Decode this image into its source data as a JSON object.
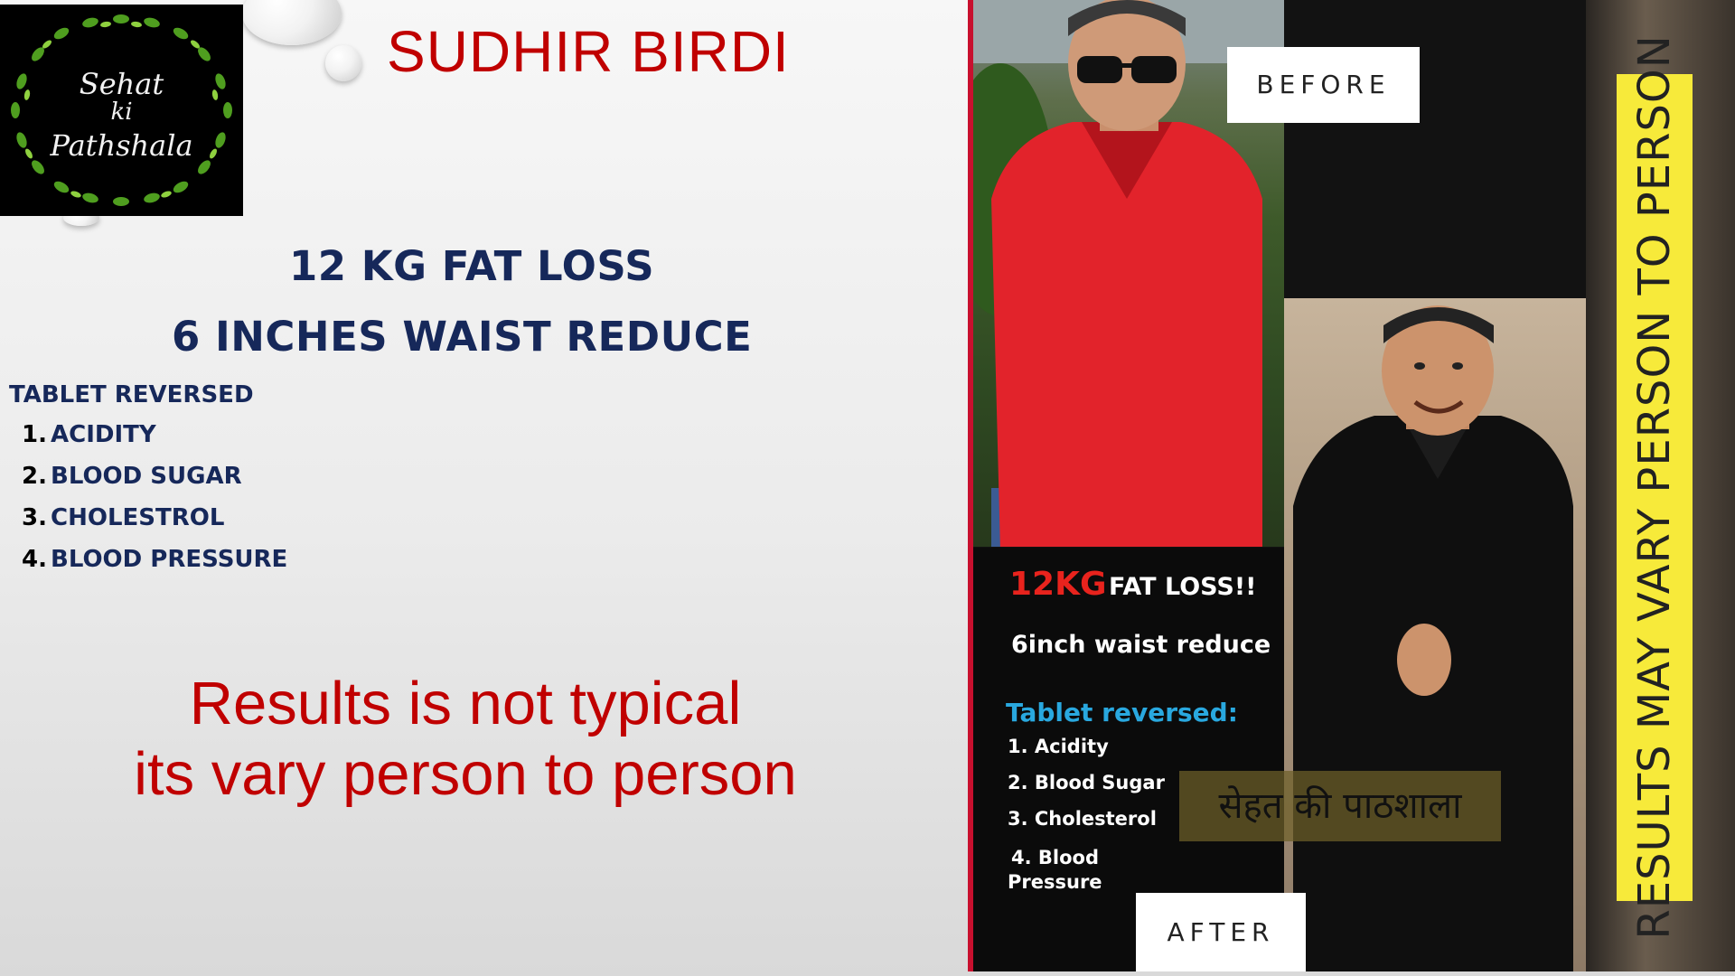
{
  "logo": {
    "line1": "Sehat",
    "line2": "ki",
    "line3": "Pathshala"
  },
  "title": "SUDHIR BIRDI",
  "headline1": "12 KG FAT LOSS",
  "headline2": "6 INCHES WAIST REDUCE",
  "tablet_heading": "TABLET REVERSED",
  "conditions": [
    {
      "num": "1.",
      "label": "ACIDITY"
    },
    {
      "num": "2.",
      "label": "BLOOD SUGAR"
    },
    {
      "num": "3.",
      "label": "CHOLESTROL"
    },
    {
      "num": "4.",
      "label": "BLOOD PRESSURE"
    }
  ],
  "disclaimer": {
    "line1": "Results is not typical",
    "line2": "its vary person to person"
  },
  "photo": {
    "before_label": "BEFORE",
    "after_label": "AFTER",
    "card": {
      "fatloss_number": "12KG",
      "fatloss_text": "FAT LOSS!!",
      "waist": "6inch waist reduce",
      "tablet_heading": "Tablet reversed:",
      "items": [
        "1. Acidity",
        "2. Blood Sugar",
        "3. Cholesterol"
      ],
      "item4_num": "4. Blood",
      "item4_rest": "Pressure"
    },
    "hindi_banner": "सेहत की पाठशाला",
    "side_banner": "RESULTS MAY VARY PERSON TO PERSON"
  },
  "colors": {
    "title_red": "#c00000",
    "headline_navy": "#16285a",
    "card_red": "#e8231d",
    "card_blue": "#29a8df",
    "banner_yellow": "#f7ea3a",
    "shirt_red": "#e2232b"
  }
}
